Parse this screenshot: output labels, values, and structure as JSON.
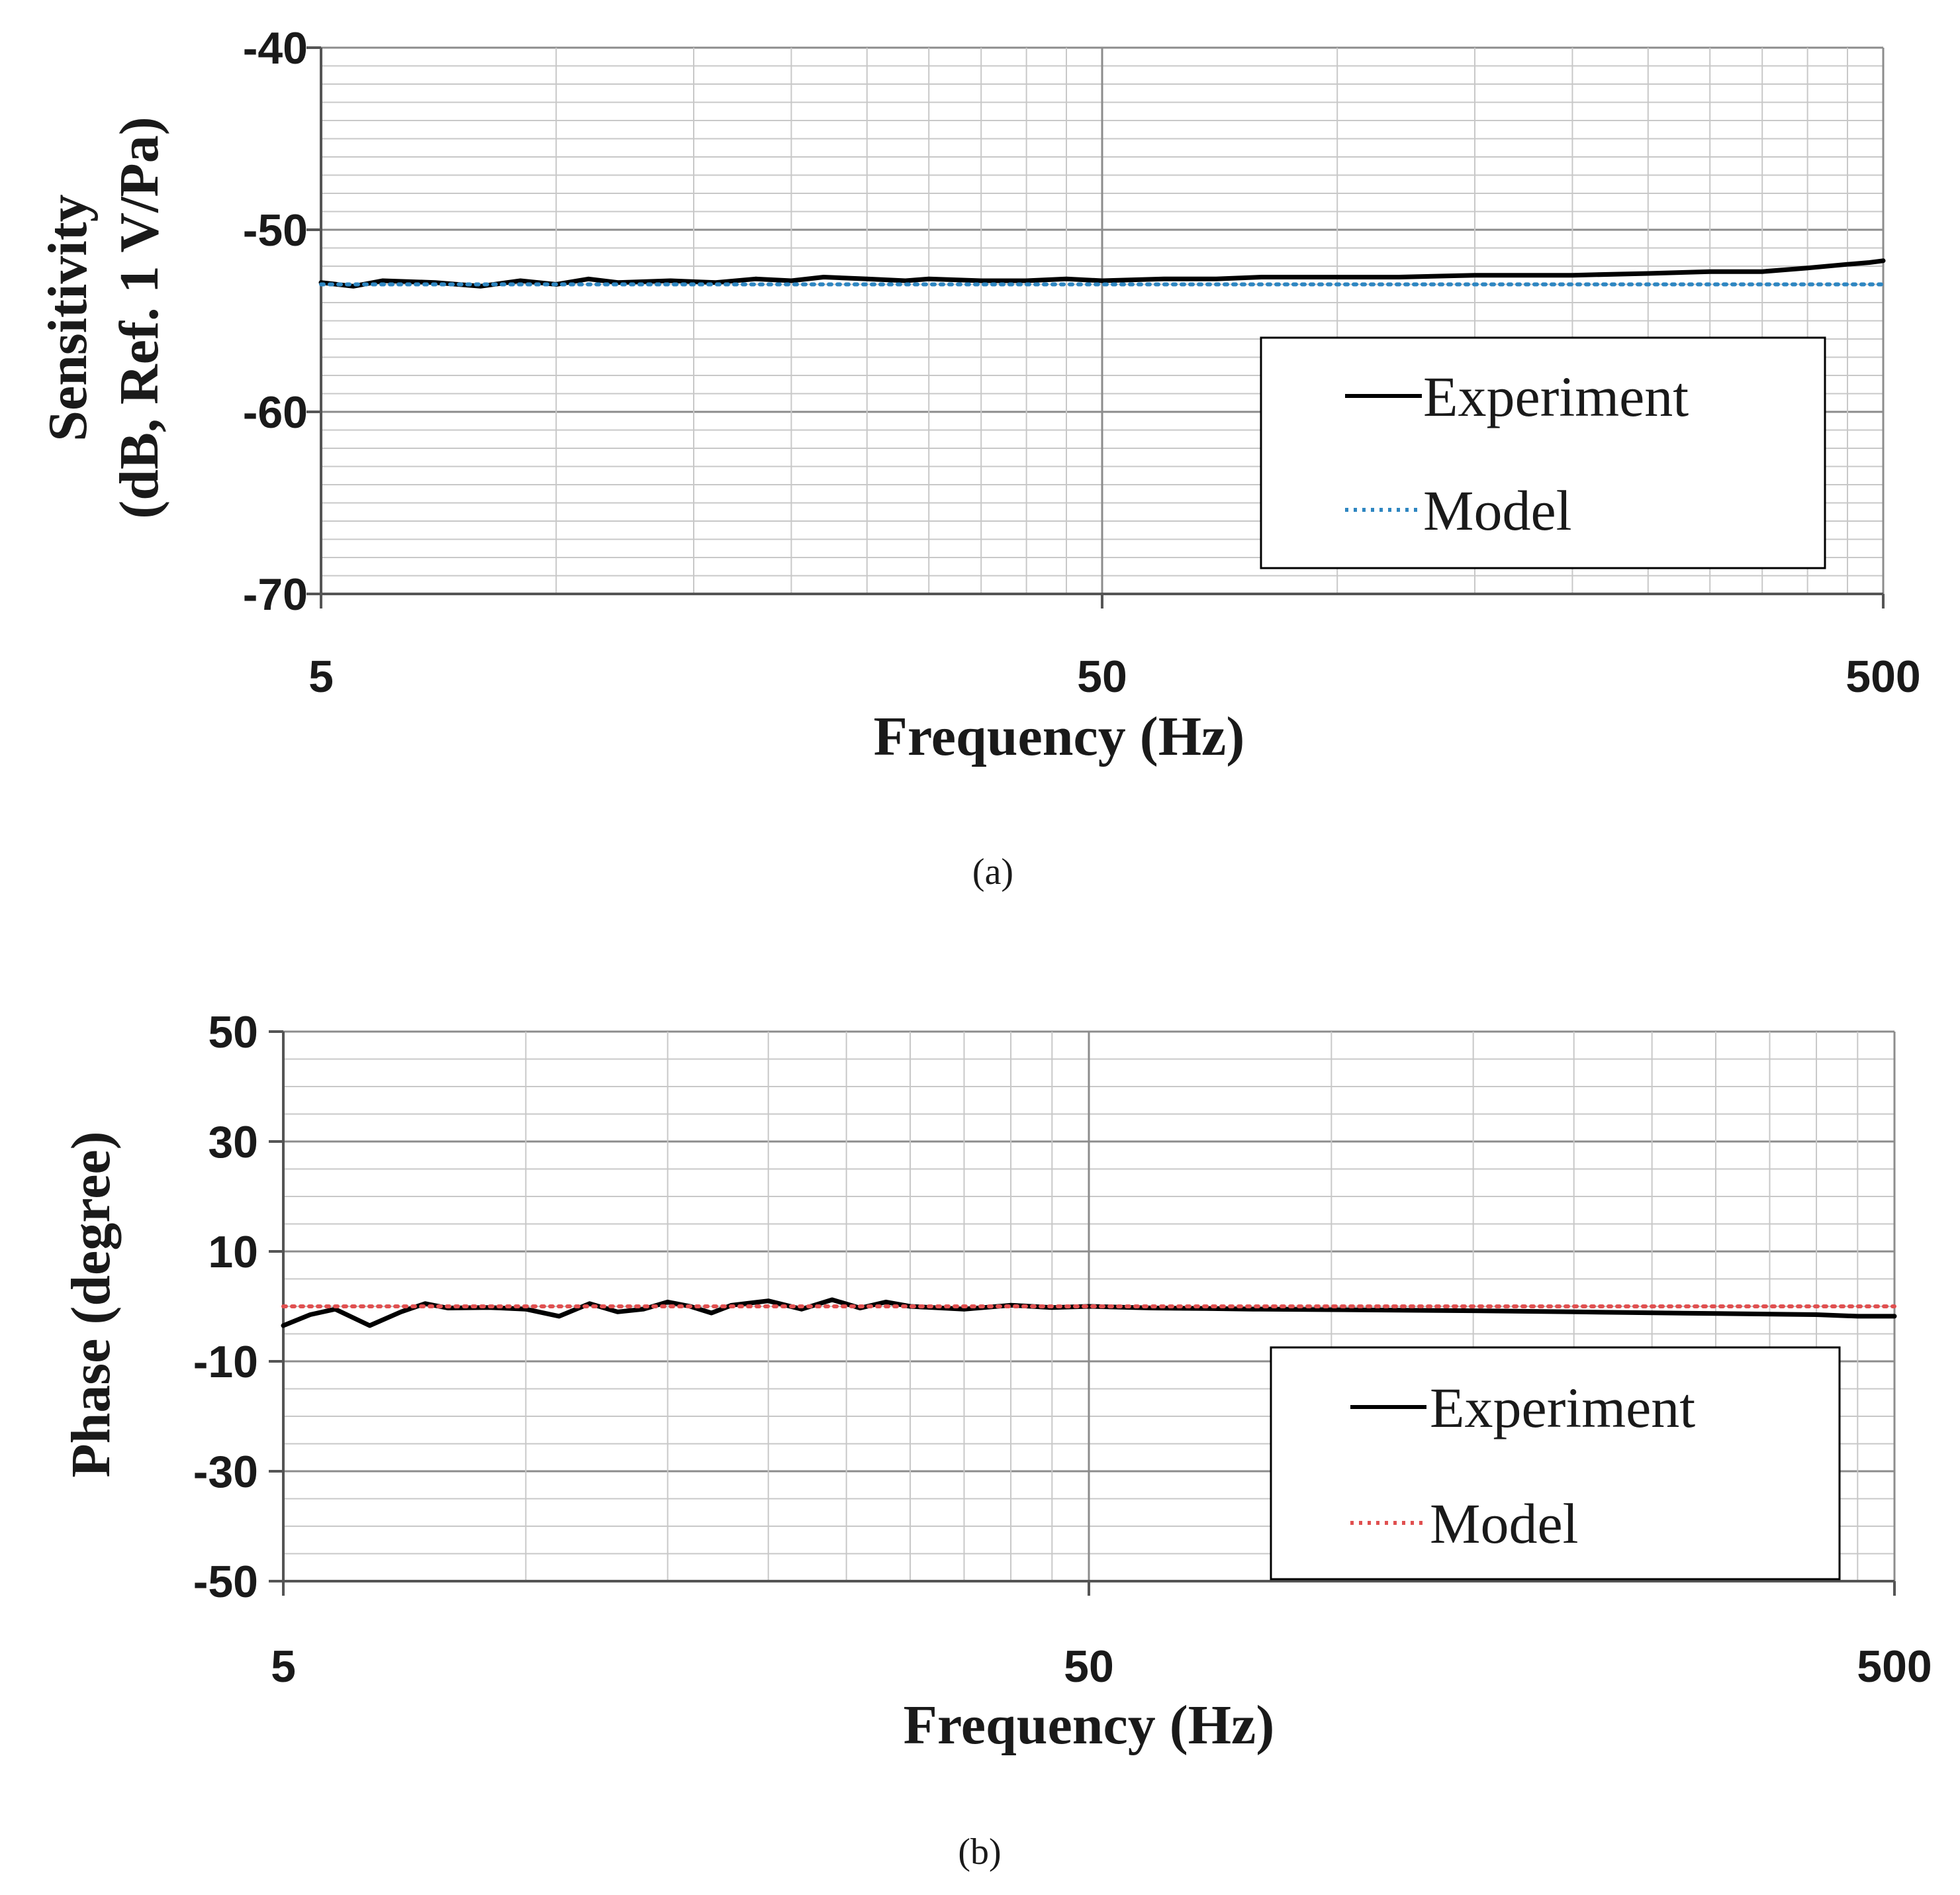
{
  "chart_data": [
    {
      "id": "a",
      "type": "line",
      "caption": "(a)",
      "xscale": "log",
      "xlim": [
        5,
        500
      ],
      "xticks": [
        "5",
        "50",
        "500"
      ],
      "xlabel": "Frequency (Hz)",
      "ylabel": "Sensitivity",
      "ylabel_line2": "(dB, Ref. 1 V/Pa)",
      "ylim": [
        -70,
        -40
      ],
      "yticks": [
        "-40",
        "-50",
        "-60",
        "-70"
      ],
      "grid": true,
      "legend_position": "bottom-right",
      "series": [
        {
          "name": "Experiment",
          "style": "solid",
          "color": "#000000",
          "x": [
            5,
            5.5,
            6,
            7,
            8,
            9,
            10,
            11,
            12,
            14,
            16,
            18,
            20,
            22,
            25,
            28,
            30,
            35,
            40,
            45,
            50,
            60,
            70,
            80,
            100,
            120,
            150,
            200,
            250,
            300,
            350,
            400,
            450,
            480,
            500
          ],
          "y": [
            -52.9,
            -53.1,
            -52.8,
            -52.9,
            -53.1,
            -52.8,
            -53.0,
            -52.7,
            -52.9,
            -52.8,
            -52.9,
            -52.7,
            -52.8,
            -52.6,
            -52.7,
            -52.8,
            -52.7,
            -52.8,
            -52.8,
            -52.7,
            -52.8,
            -52.7,
            -52.7,
            -52.6,
            -52.6,
            -52.6,
            -52.5,
            -52.5,
            -52.4,
            -52.3,
            -52.3,
            -52.1,
            -51.9,
            -51.8,
            -51.7
          ]
        },
        {
          "name": "Model",
          "style": "dotted",
          "color": "#2e86c1",
          "x": [
            5,
            500
          ],
          "y": [
            -53.0,
            -53.0
          ]
        }
      ]
    },
    {
      "id": "b",
      "type": "line",
      "caption": "(b)",
      "xscale": "log",
      "xlim": [
        5,
        500
      ],
      "xticks": [
        "5",
        "50",
        "500"
      ],
      "xlabel": "Frequency (Hz)",
      "ylabel": "Phase (degree)",
      "ylim": [
        -50,
        50
      ],
      "yticks": [
        "50",
        "30",
        "10",
        "-10",
        "-30",
        "-50"
      ],
      "grid": true,
      "legend_position": "bottom-right",
      "series": [
        {
          "name": "Experiment",
          "style": "solid",
          "color": "#000000",
          "x": [
            5,
            5.4,
            5.8,
            6.4,
            7,
            7.5,
            8,
            9,
            10,
            11,
            12,
            13,
            14,
            15,
            16,
            17,
            18,
            20,
            22,
            24,
            26,
            28,
            30,
            35,
            40,
            45,
            50,
            60,
            70,
            80,
            100,
            150,
            200,
            300,
            400,
            450,
            500
          ],
          "y": [
            -3.5,
            -1.5,
            -0.5,
            -3.5,
            -1.0,
            0.5,
            -0.3,
            -0.2,
            -0.5,
            -1.8,
            0.5,
            -1.0,
            -0.5,
            0.8,
            0.0,
            -1.2,
            0.2,
            1.0,
            -0.5,
            1.2,
            -0.3,
            0.8,
            0.0,
            -0.5,
            0.2,
            -0.2,
            0.0,
            -0.3,
            -0.4,
            -0.5,
            -0.6,
            -0.8,
            -1.0,
            -1.3,
            -1.5,
            -1.8,
            -1.8
          ]
        },
        {
          "name": "Model",
          "style": "dotted",
          "color": "#e05050",
          "x": [
            5,
            500
          ],
          "y": [
            0,
            0
          ]
        }
      ]
    }
  ]
}
